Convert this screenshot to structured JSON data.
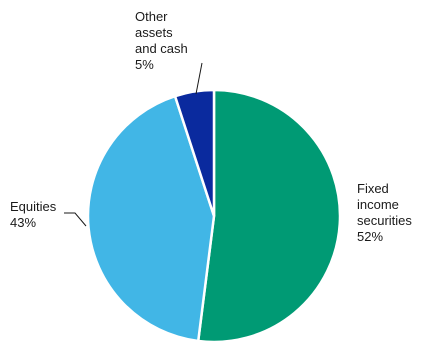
{
  "chart_data": {
    "type": "pie",
    "title": "",
    "slices": [
      {
        "label": [
          "Fixed",
          "income",
          "securities"
        ],
        "value": 52,
        "value_label": "52%",
        "color": "#009a74"
      },
      {
        "label": [
          "Equities"
        ],
        "value": 43,
        "value_label": "43%",
        "color": "#41b6e6"
      },
      {
        "label": [
          "Other",
          "assets",
          "and cash"
        ],
        "value": 5,
        "value_label": "5%",
        "color": "#0a2a9e"
      }
    ],
    "start": "12 o'clock",
    "direction": "clockwise",
    "legend": "none"
  }
}
